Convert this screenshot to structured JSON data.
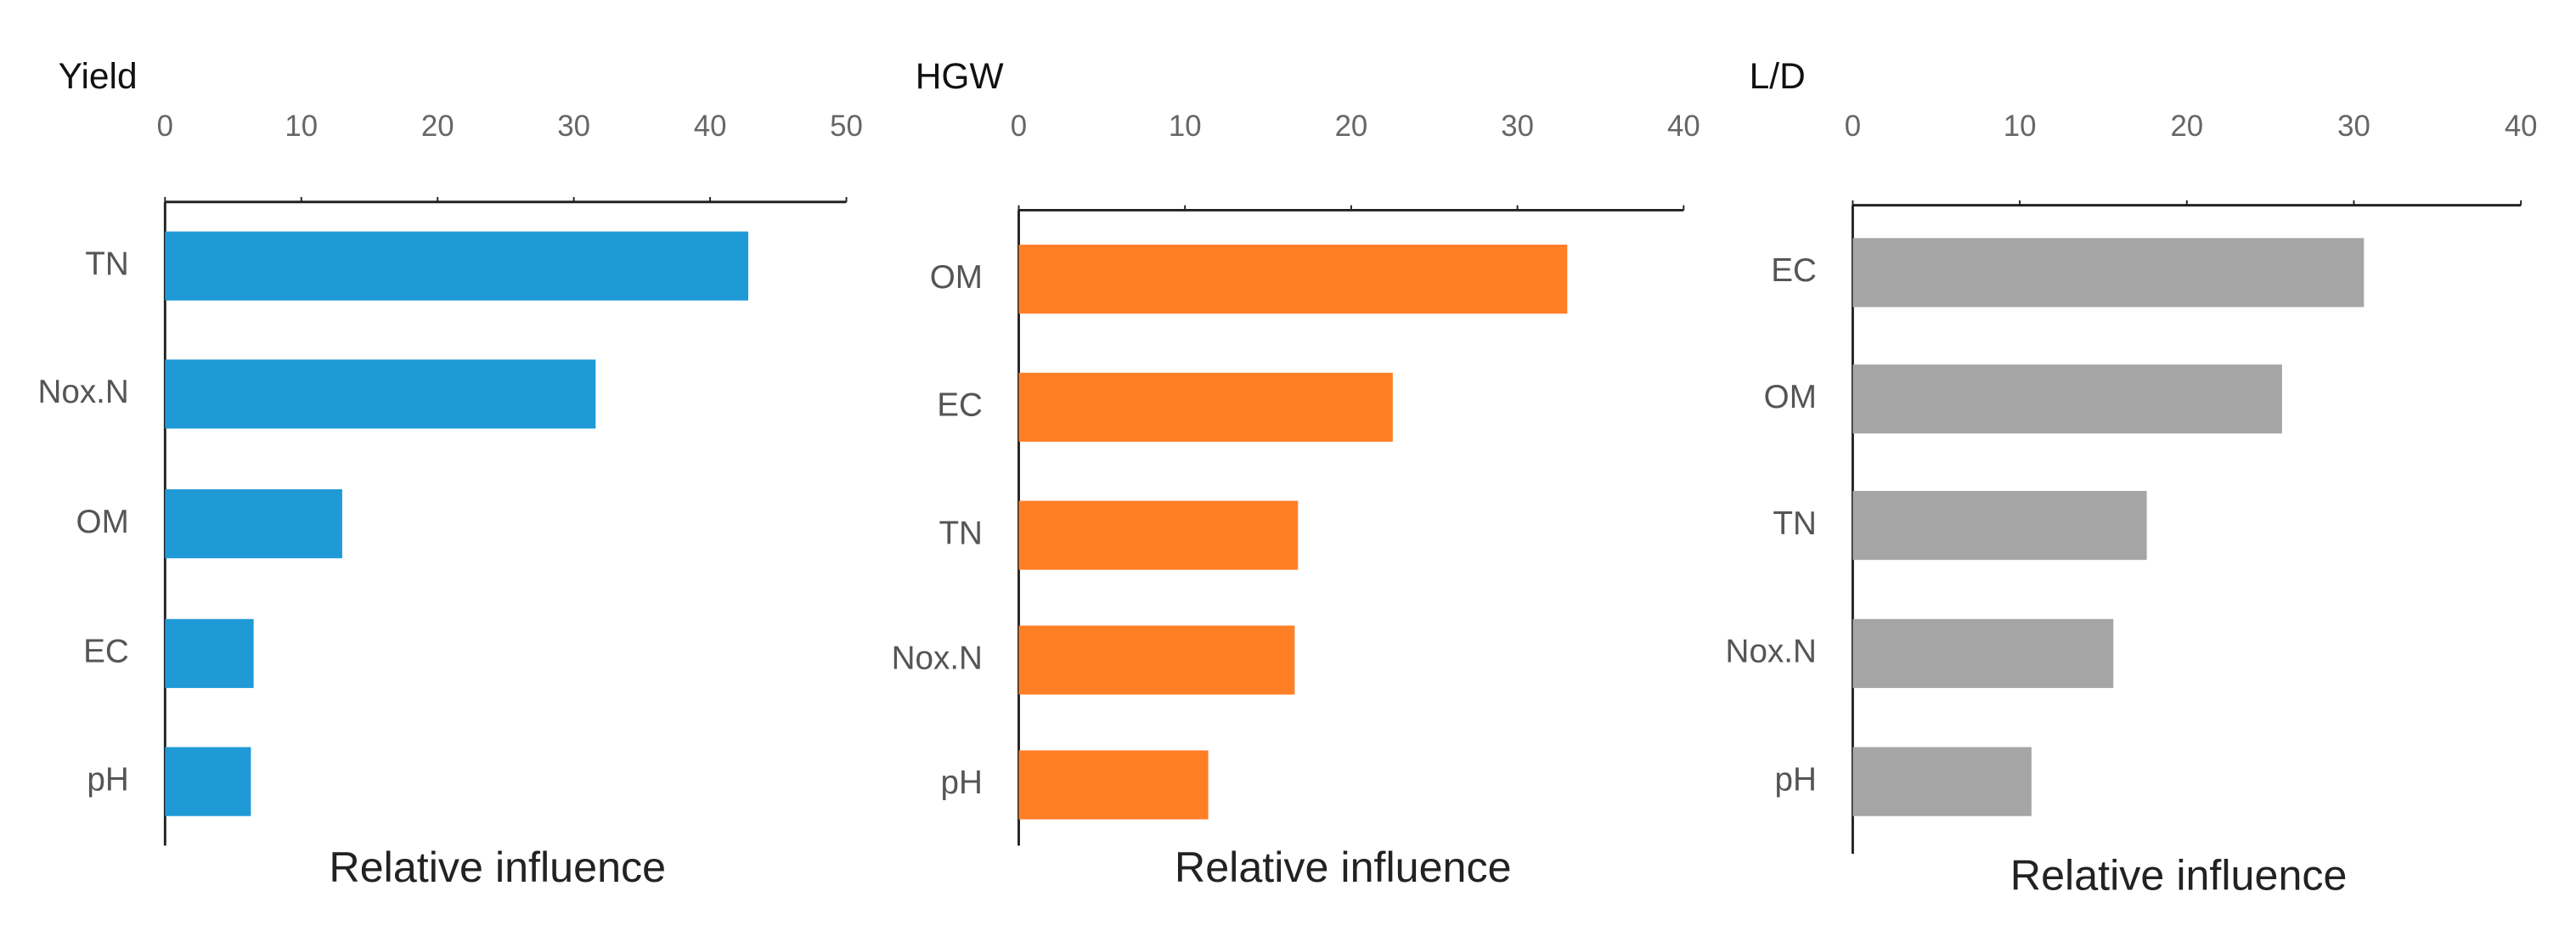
{
  "chart_data": [
    {
      "type": "bar",
      "orientation": "horizontal",
      "title": "Yield",
      "x_label": "Relative influence",
      "categories": [
        "TN",
        "Nox.N",
        "OM",
        "EC",
        "pH"
      ],
      "values": [
        42.8,
        31.6,
        13,
        6.5,
        6.3
      ],
      "color": "#1f9ad6",
      "xlim": [
        0,
        50
      ],
      "xticks": [
        0,
        10,
        20,
        30,
        40,
        50
      ]
    },
    {
      "type": "bar",
      "orientation": "horizontal",
      "title": "HGW",
      "x_label": "Relative influence",
      "categories": [
        "OM",
        "EC",
        "TN",
        "Nox.N",
        "pH"
      ],
      "values": [
        33,
        22.5,
        16.8,
        16.6,
        11.4
      ],
      "color": "#ff7f27",
      "xlim": [
        0,
        40
      ],
      "xticks": [
        0,
        10,
        20,
        30,
        40
      ]
    },
    {
      "type": "bar",
      "orientation": "horizontal",
      "title": "L/D",
      "x_label": "Relative influence",
      "categories": [
        "EC",
        "OM",
        "TN",
        "Nox.N",
        "pH"
      ],
      "values": [
        30.6,
        25.7,
        17.6,
        15.6,
        10.7
      ],
      "color": "#a5a5a5",
      "xlim": [
        0,
        40
      ],
      "xticks": [
        0,
        10,
        20,
        30,
        40
      ]
    }
  ]
}
